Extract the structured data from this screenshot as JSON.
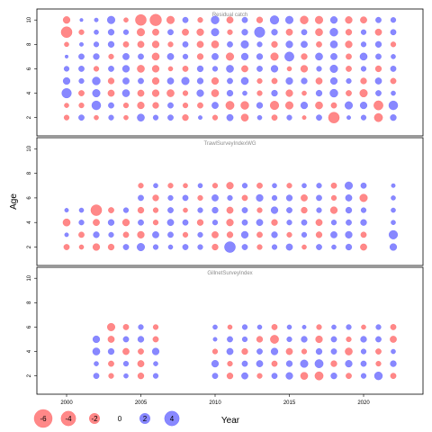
{
  "chart_data": {
    "type": "bubble",
    "xlabel": "Year",
    "ylabel": "Age",
    "x_ticks": [
      2000,
      2005,
      2010,
      2015,
      2020
    ],
    "y_ticks": [
      2,
      4,
      6,
      8,
      10
    ],
    "xlim": [
      1998,
      2024
    ],
    "ylim": [
      0.5,
      10.9
    ],
    "colors": {
      "positive": "#5a5aff",
      "negative": "#ff5a5a"
    },
    "legend": {
      "placement": "bottom-left",
      "values": [
        -6,
        -4,
        -2,
        0,
        2,
        4
      ],
      "labels": [
        "-6",
        "-4",
        "-2",
        "0",
        "2",
        "4"
      ]
    },
    "panels": [
      {
        "title": "Residual catch",
        "years": [
          2000,
          2001,
          2002,
          2003,
          2004,
          2005,
          2006,
          2007,
          2008,
          2009,
          2010,
          2011,
          2012,
          2013,
          2014,
          2015,
          2016,
          2017,
          2018,
          2019,
          2020,
          2021,
          2022
        ],
        "ages": [
          2,
          3,
          4,
          5,
          6,
          7,
          8,
          9,
          10
        ],
        "residuals": [
          [
            -0.5,
            0.6,
            -0.4,
            0.5,
            -0.4,
            1.0,
            0.5,
            0.6,
            -0.7,
            0.3,
            -0.5,
            0.8,
            -1.0,
            0.4,
            -0.6,
            0.5,
            -0.3,
            0.6,
            -2.2,
            0.3,
            0.5,
            -1.3,
            0.7
          ],
          [
            -0.4,
            -0.5,
            1.5,
            0.6,
            -0.5,
            -0.9,
            -0.7,
            0.6,
            -0.5,
            -0.6,
            0.8,
            -1.3,
            -1.2,
            0.7,
            -1.4,
            -1.1,
            0.9,
            -1.0,
            -0.6,
            1.1,
            0.9,
            -1.6,
            1.5
          ],
          [
            1.7,
            -0.6,
            1.1,
            -0.8,
            1.0,
            -0.8,
            -0.9,
            -1.0,
            -0.5,
            0.9,
            -1.0,
            0.7,
            0.4,
            -0.5,
            0.7,
            -0.9,
            -0.4,
            0.7,
            1.2,
            -0.6,
            -1.1,
            0.6,
            0.4
          ],
          [
            0.9,
            0.5,
            1.2,
            -0.7,
            0.8,
            0.6,
            -0.9,
            0.8,
            1.1,
            0.7,
            -0.9,
            0.6,
            1.0,
            -0.5,
            -0.6,
            0.9,
            0.7,
            -0.8,
            0.9,
            0.5,
            -0.7,
            0.8,
            -0.6
          ],
          [
            0.5,
            0.6,
            -0.5,
            0.6,
            0.9,
            -1.0,
            -0.9,
            -0.4,
            -0.6,
            0.7,
            0.5,
            1.0,
            -0.8,
            0.6,
            0.9,
            -0.4,
            -0.9,
            0.5,
            1.1,
            -0.6,
            0.5,
            -0.7,
            0.6
          ],
          [
            0.2,
            0.6,
            0.7,
            -0.5,
            0.8,
            0.6,
            -1.0,
            0.8,
            0.5,
            -0.7,
            0.8,
            -1.1,
            0.9,
            0.7,
            -1.1,
            1.6,
            -0.7,
            1.0,
            0.8,
            -0.6,
            1.0,
            0.6,
            0.4
          ],
          [
            -0.4,
            0.3,
            0.5,
            0.7,
            -0.6,
            -0.8,
            -0.9,
            -0.5,
            0.6,
            -0.8,
            -1.0,
            0.6,
            1.1,
            0.5,
            -0.7,
            0.9,
            0.8,
            -0.6,
            1.0,
            -0.9,
            0.5,
            0.7,
            -0.5
          ],
          [
            -2.2,
            -0.5,
            0.4,
            0.7,
            0.5,
            -1.1,
            -0.8,
            0.6,
            -0.8,
            -0.9,
            1.1,
            -0.5,
            0.7,
            2.0,
            0.7,
            -0.8,
            0.6,
            -1.0,
            1.2,
            -0.7,
            0.5,
            -0.8,
            0.6
          ],
          [
            -0.9,
            0.2,
            0.3,
            1.1,
            -0.4,
            -2.2,
            -2.5,
            -1.1,
            0.6,
            -0.5,
            1.2,
            -0.8,
            0.6,
            -0.7,
            1.4,
            1.1,
            -1.2,
            -1.1,
            0.9,
            -0.9,
            -0.8,
            0.6,
            0.5
          ]
        ]
      },
      {
        "title": "TrawlSurveyIndexWG",
        "years": [
          2000,
          2001,
          2002,
          2003,
          2004,
          2005,
          2006,
          2007,
          2008,
          2009,
          2010,
          2011,
          2012,
          2013,
          2014,
          2015,
          2016,
          2017,
          2018,
          2019,
          2020,
          2022
        ],
        "ages": [
          2,
          3,
          4,
          5,
          6,
          7
        ],
        "residuals": [
          [
            -0.6,
            -0.4,
            -0.9,
            -0.7,
            0.6,
            1.1,
            0.5,
            0.4,
            0.6,
            0.5,
            -0.7,
            2.2,
            0.6,
            -0.5,
            0.5,
            0.8,
            -0.4,
            0.6,
            0.4,
            0.7,
            -0.8,
            0.9
          ],
          [
            0.3,
            -0.6,
            0.7,
            0.5,
            -0.6,
            -0.9,
            0.8,
            0.6,
            -0.5,
            0.5,
            -0.8,
            -0.7,
            0.9,
            -0.6,
            0.7,
            -0.5,
            0.5,
            -0.7,
            0.8,
            0.9,
            -0.6,
            1.4
          ],
          [
            -1.0,
            0.5,
            -0.8,
            0.7,
            -0.9,
            0.6,
            -0.5,
            0.8,
            0.6,
            -0.7,
            0.5,
            -0.9,
            0.6,
            0.8,
            -0.7,
            0.5,
            0.6,
            -0.8,
            0.5,
            0.6,
            0.7,
            0.4
          ],
          [
            0.3,
            0.4,
            -2.2,
            -0.6,
            0.5,
            -0.7,
            -0.5,
            0.6,
            -0.4,
            0.5,
            0.7,
            -0.8,
            0.6,
            -0.5,
            0.9,
            0.6,
            -0.7,
            0.5,
            -0.9,
            0.7,
            0.5,
            0.4
          ],
          [
            0,
            0,
            0,
            0,
            0,
            0.6,
            -0.7,
            0.5,
            0.6,
            -0.5,
            0.8,
            0.5,
            -0.6,
            0.9,
            0.5,
            0.7,
            -0.8,
            0.6,
            -0.5,
            0.8,
            -1.1,
            0.4
          ],
          [
            0,
            0,
            0,
            0,
            0,
            -0.5,
            0.4,
            -0.5,
            -0.4,
            0.4,
            -0.5,
            -0.9,
            0.5,
            -0.6,
            0.4,
            -0.5,
            0.4,
            0.5,
            -0.6,
            1.1,
            0.6,
            0.3
          ]
        ]
      },
      {
        "title": "GillnetSurveyIndex",
        "years": [
          2002,
          2003,
          2004,
          2005,
          2006,
          2010,
          2011,
          2012,
          2013,
          2014,
          2015,
          2016,
          2017,
          2018,
          2019,
          2020,
          2021,
          2022
        ],
        "ages": [
          2,
          3,
          4,
          5,
          6
        ],
        "residuals": [
          [
            0.6,
            -0.5,
            0.4,
            -0.7,
            0.5,
            0.6,
            -0.7,
            0.8,
            -0.5,
            0.6,
            0.9,
            -1.0,
            -1.3,
            0.7,
            -0.6,
            0.5,
            1.2,
            -0.6
          ],
          [
            0.4,
            -0.6,
            0.5,
            -0.8,
            0.4,
            0.9,
            -0.5,
            0.6,
            0.8,
            -0.6,
            0.7,
            1.1,
            1.3,
            -0.7,
            0.9,
            0.6,
            -0.5,
            0.7
          ],
          [
            1.0,
            0.7,
            -0.8,
            -0.6,
            0.9,
            -0.5,
            0.8,
            -0.7,
            0.6,
            0.9,
            -0.8,
            -0.5,
            0.7,
            0.6,
            -1.0,
            0.5,
            -0.6,
            0.4
          ],
          [
            0.9,
            -0.8,
            0.6,
            0.7,
            -0.6,
            0.3,
            0.6,
            0.5,
            -0.7,
            -1.3,
            0.5,
            0.7,
            -0.9,
            0.6,
            -0.5,
            0.7,
            0.6,
            -0.8
          ],
          [
            0,
            -1.1,
            -0.6,
            0.5,
            -0.5,
            0.4,
            -0.4,
            0.5,
            0.4,
            -0.6,
            0.4,
            0.3,
            -0.5,
            0.4,
            0.5,
            -0.4,
            0.5,
            -0.6
          ]
        ]
      }
    ]
  }
}
